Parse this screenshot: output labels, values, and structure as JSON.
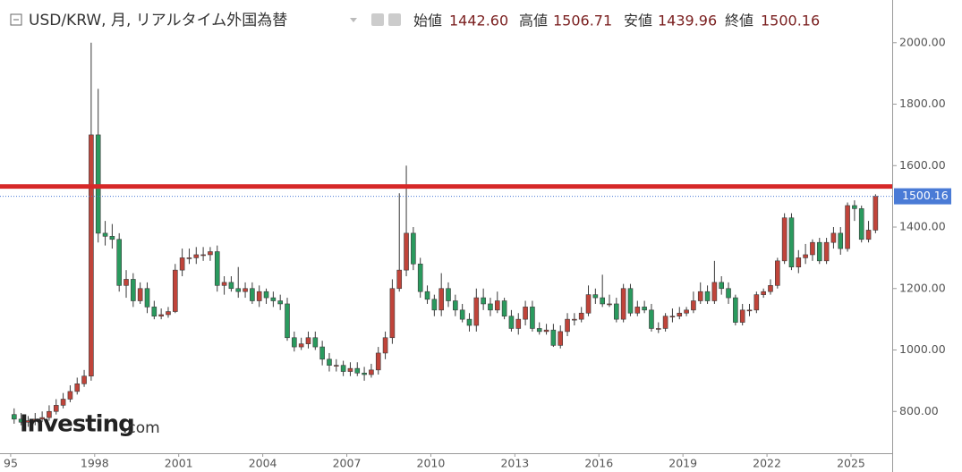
{
  "header": {
    "title": "USD/KRW, 月, リアルタイム外国為替",
    "ohlc": [
      {
        "label": "始値",
        "value": "1442.60"
      },
      {
        "label": "高値",
        "value": "1506.71"
      },
      {
        "label": "安値",
        "value": "1439.96"
      },
      {
        "label": "終値",
        "value": "1500.16"
      }
    ]
  },
  "watermark": {
    "brand": "Investing",
    "suffix": ".com"
  },
  "chart_data": {
    "type": "candlestick",
    "up_color": "#c0443a",
    "down_color": "#2a9a5e",
    "xlim": [
      1994.62,
      2026.47
    ],
    "xticks": [
      {
        "value": 1995,
        "label": "95"
      },
      1998,
      2001,
      2004,
      2007,
      2010,
      2013,
      2016,
      2019,
      2022,
      2025
    ],
    "ylim": [
      664,
      2139
    ],
    "yticks": [
      {
        "value": 800,
        "label": "800.00"
      },
      {
        "value": 1000,
        "label": "1000.00"
      },
      {
        "value": 1200,
        "label": "1200.00"
      },
      {
        "value": 1400,
        "label": "1400.00"
      },
      {
        "value": 1600,
        "label": "1600.00"
      },
      {
        "value": 1800,
        "label": "1800.00"
      },
      {
        "value": 2000,
        "label": "2000.00"
      }
    ],
    "last_price": {
      "value": 1500.16,
      "label": "1500.16"
    },
    "level_line": {
      "value": 1532,
      "color": "#d62828"
    },
    "x": [
      1995.125,
      1995.375,
      1995.625,
      1995.875,
      1996.125,
      1996.375,
      1996.625,
      1996.875,
      1997.125,
      1997.375,
      1997.625,
      1997.875,
      1998.125,
      1998.375,
      1998.625,
      1998.875,
      1999.125,
      1999.375,
      1999.625,
      1999.875,
      2000.125,
      2000.375,
      2000.625,
      2000.875,
      2001.125,
      2001.375,
      2001.625,
      2001.875,
      2002.125,
      2002.375,
      2002.625,
      2002.875,
      2003.125,
      2003.375,
      2003.625,
      2003.875,
      2004.125,
      2004.375,
      2004.625,
      2004.875,
      2005.125,
      2005.375,
      2005.625,
      2005.875,
      2006.125,
      2006.375,
      2006.625,
      2006.875,
      2007.125,
      2007.375,
      2007.625,
      2007.875,
      2008.125,
      2008.375,
      2008.625,
      2008.875,
      2009.125,
      2009.375,
      2009.625,
      2009.875,
      2010.125,
      2010.375,
      2010.625,
      2010.875,
      2011.125,
      2011.375,
      2011.625,
      2011.875,
      2012.125,
      2012.375,
      2012.625,
      2012.875,
      2013.125,
      2013.375,
      2013.625,
      2013.875,
      2014.125,
      2014.375,
      2014.625,
      2014.875,
      2015.125,
      2015.375,
      2015.625,
      2015.875,
      2016.125,
      2016.375,
      2016.625,
      2016.875,
      2017.125,
      2017.375,
      2017.625,
      2017.875,
      2018.125,
      2018.375,
      2018.625,
      2018.875,
      2019.125,
      2019.375,
      2019.625,
      2019.875,
      2020.125,
      2020.375,
      2020.625,
      2020.875,
      2021.125,
      2021.375,
      2021.625,
      2021.875,
      2022.125,
      2022.375,
      2022.625,
      2022.875,
      2023.125,
      2023.375,
      2023.625,
      2023.875,
      2024.125,
      2024.375,
      2024.625,
      2024.875,
      2025.125,
      2025.375,
      2025.625,
      2025.875
    ],
    "open": [
      790,
      775,
      765,
      770,
      775,
      780,
      800,
      820,
      840,
      865,
      890,
      915,
      1700,
      1380,
      1370,
      1360,
      1210,
      1230,
      1160,
      1200,
      1140,
      1110,
      1115,
      1125,
      1260,
      1300,
      1300,
      1310,
      1310,
      1320,
      1210,
      1220,
      1200,
      1190,
      1200,
      1160,
      1190,
      1170,
      1160,
      1150,
      1040,
      1010,
      1020,
      1040,
      1010,
      970,
      950,
      950,
      930,
      940,
      925,
      920,
      935,
      990,
      1040,
      1200,
      1260,
      1380,
      1280,
      1190,
      1165,
      1130,
      1200,
      1160,
      1130,
      1100,
      1080,
      1170,
      1150,
      1130,
      1160,
      1110,
      1070,
      1100,
      1140,
      1070,
      1060,
      1065,
      1015,
      1060,
      1100,
      1100,
      1120,
      1180,
      1170,
      1150,
      1150,
      1100,
      1200,
      1120,
      1140,
      1130,
      1070,
      1070,
      1110,
      1110,
      1120,
      1130,
      1160,
      1190,
      1160,
      1220,
      1200,
      1170,
      1090,
      1130,
      1130,
      1180,
      1190,
      1210,
      1290,
      1430,
      1270,
      1300,
      1310,
      1350,
      1290,
      1350,
      1380,
      1330,
      1470,
      1460,
      1360,
      1390
    ],
    "high": [
      810,
      795,
      785,
      795,
      800,
      820,
      840,
      860,
      885,
      910,
      935,
      2000,
      1850,
      1420,
      1410,
      1380,
      1260,
      1250,
      1220,
      1220,
      1160,
      1135,
      1140,
      1280,
      1330,
      1330,
      1335,
      1335,
      1335,
      1340,
      1240,
      1240,
      1270,
      1220,
      1220,
      1210,
      1200,
      1190,
      1180,
      1170,
      1060,
      1040,
      1060,
      1060,
      1030,
      990,
      970,
      965,
      960,
      960,
      945,
      955,
      1010,
      1060,
      1230,
      1510,
      1600,
      1400,
      1300,
      1210,
      1180,
      1250,
      1220,
      1180,
      1150,
      1120,
      1200,
      1200,
      1170,
      1190,
      1170,
      1130,
      1120,
      1160,
      1160,
      1090,
      1085,
      1085,
      1080,
      1120,
      1120,
      1140,
      1210,
      1200,
      1245,
      1180,
      1170,
      1215,
      1215,
      1160,
      1160,
      1150,
      1090,
      1120,
      1135,
      1140,
      1140,
      1190,
      1220,
      1210,
      1290,
      1240,
      1220,
      1180,
      1150,
      1150,
      1190,
      1200,
      1230,
      1300,
      1445,
      1445,
      1325,
      1345,
      1360,
      1365,
      1365,
      1400,
      1400,
      1480,
      1487,
      1470,
      1420,
      1506.71
    ],
    "low": [
      760,
      755,
      750,
      755,
      765,
      770,
      790,
      810,
      830,
      855,
      880,
      900,
      1350,
      1340,
      1330,
      1190,
      1170,
      1140,
      1150,
      1120,
      1100,
      1100,
      1105,
      1120,
      1240,
      1280,
      1280,
      1290,
      1290,
      1190,
      1180,
      1190,
      1170,
      1170,
      1150,
      1140,
      1150,
      1140,
      1130,
      1030,
      995,
      1000,
      1005,
      1000,
      950,
      930,
      930,
      915,
      915,
      915,
      900,
      910,
      920,
      970,
      1020,
      1190,
      1240,
      1260,
      1170,
      1150,
      1110,
      1110,
      1140,
      1110,
      1090,
      1060,
      1060,
      1130,
      1110,
      1120,
      1100,
      1060,
      1050,
      1080,
      1060,
      1050,
      1050,
      1010,
      1005,
      1045,
      1080,
      1090,
      1110,
      1150,
      1140,
      1140,
      1090,
      1090,
      1110,
      1110,
      1120,
      1060,
      1055,
      1060,
      1090,
      1100,
      1110,
      1120,
      1150,
      1150,
      1150,
      1180,
      1150,
      1080,
      1080,
      1110,
      1120,
      1170,
      1180,
      1200,
      1280,
      1260,
      1250,
      1280,
      1290,
      1280,
      1280,
      1330,
      1310,
      1320,
      1420,
      1350,
      1350,
      1380
    ],
    "close": [
      775,
      765,
      770,
      775,
      780,
      800,
      820,
      840,
      865,
      890,
      915,
      1700,
      1380,
      1370,
      1360,
      1210,
      1230,
      1160,
      1200,
      1140,
      1110,
      1115,
      1125,
      1260,
      1300,
      1300,
      1310,
      1310,
      1320,
      1210,
      1220,
      1200,
      1190,
      1200,
      1160,
      1190,
      1170,
      1160,
      1150,
      1040,
      1010,
      1020,
      1040,
      1010,
      970,
      950,
      950,
      930,
      940,
      925,
      920,
      935,
      990,
      1040,
      1200,
      1260,
      1380,
      1280,
      1190,
      1165,
      1130,
      1200,
      1160,
      1130,
      1100,
      1080,
      1170,
      1150,
      1130,
      1160,
      1110,
      1070,
      1100,
      1140,
      1070,
      1060,
      1065,
      1015,
      1060,
      1100,
      1100,
      1120,
      1180,
      1170,
      1150,
      1150,
      1100,
      1200,
      1120,
      1140,
      1130,
      1070,
      1070,
      1110,
      1110,
      1120,
      1130,
      1160,
      1190,
      1160,
      1220,
      1200,
      1170,
      1090,
      1130,
      1130,
      1180,
      1190,
      1210,
      1290,
      1430,
      1270,
      1300,
      1310,
      1350,
      1290,
      1350,
      1380,
      1330,
      1470,
      1460,
      1360,
      1390,
      1500.16
    ]
  }
}
